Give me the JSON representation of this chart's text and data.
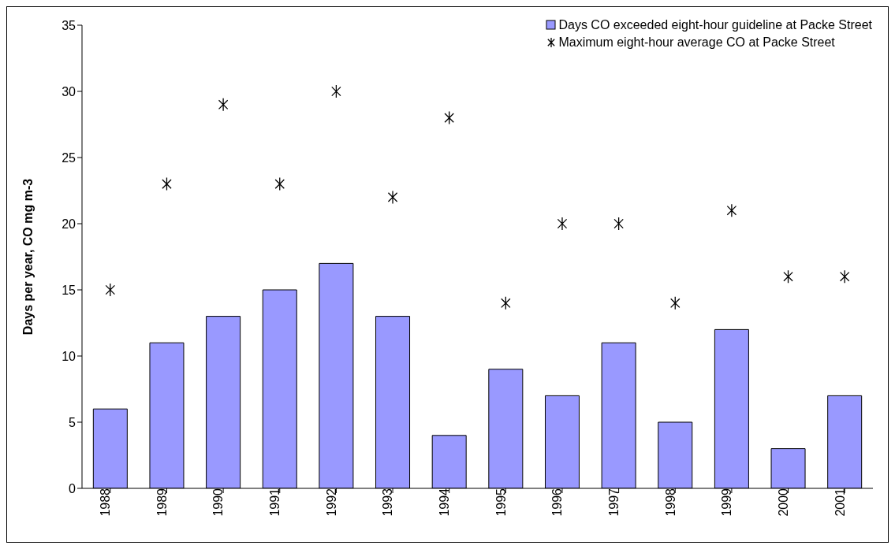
{
  "chart_data": {
    "type": "bar",
    "ylabel": "Days per year, CO mg m-3",
    "categories": [
      "1988",
      "1989",
      "1990",
      "1991",
      "1992",
      "1993",
      "1994",
      "1995",
      "1996",
      "1997",
      "1998",
      "1999",
      "2000",
      "2001"
    ],
    "series": [
      {
        "name": "Days CO exceeded eight-hour guideline at Packe Street",
        "color": "#9999ff",
        "values": [
          6,
          11,
          13,
          15,
          17,
          13,
          4,
          9,
          7,
          11,
          5,
          12,
          3,
          7
        ]
      },
      {
        "name": "Maximum eight-hour average CO at Packe Street",
        "type": "scatter",
        "color": "#000000",
        "values": [
          15,
          23,
          29,
          23,
          30,
          22,
          28,
          14,
          20,
          20,
          14,
          21,
          16,
          16
        ]
      }
    ],
    "ylim": [
      0,
      35
    ],
    "yticks": [
      0,
      5,
      10,
      15,
      20,
      25,
      30,
      35
    ],
    "legend": "top right",
    "marker": "cross"
  }
}
